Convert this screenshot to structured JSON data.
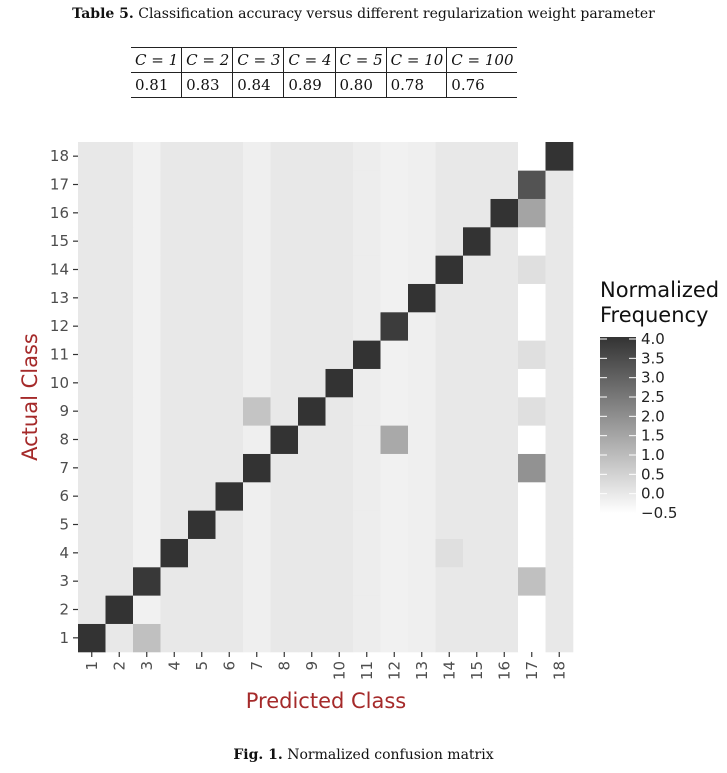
{
  "table": {
    "label": "Table 5.",
    "caption": "Classification accuracy versus different regularization weight parameter",
    "headers": [
      "C = 1",
      "C = 2",
      "C = 3",
      "C = 4",
      "C = 5",
      "C = 10",
      "C = 100"
    ],
    "values": [
      "0.81",
      "0.83",
      "0.84",
      "0.89",
      "0.80",
      "0.78",
      "0.76"
    ]
  },
  "figure": {
    "label": "Fig. 1.",
    "caption": "Normalized confusion matrix"
  },
  "colors": {
    "axis_title": "#a52a2a",
    "panel_background": "#ebebeb",
    "tile_low": "#ffffff",
    "tile_high": "#333333"
  },
  "chart_data": {
    "type": "heatmap",
    "xlabel": "Predicted Class",
    "ylabel": "Actual Class",
    "x": [
      "1",
      "2",
      "3",
      "4",
      "5",
      "6",
      "7",
      "8",
      "9",
      "10",
      "11",
      "12",
      "13",
      "14",
      "15",
      "16",
      "17",
      "18"
    ],
    "y": [
      "1",
      "2",
      "3",
      "4",
      "5",
      "6",
      "7",
      "8",
      "9",
      "10",
      "11",
      "12",
      "13",
      "14",
      "15",
      "16",
      "17",
      "18"
    ],
    "legend_title": "Normalized\nFrequency",
    "legend_ticks": [
      "4.0",
      "3.5",
      "3.0",
      "2.5",
      "2.0",
      "1.5",
      "1.0",
      "0.5",
      "0.0",
      "−0.5"
    ],
    "color_range": [
      -0.5,
      4.0
    ],
    "legend_position": "right",
    "grid": false,
    "background": 0.0,
    "column_overrides": [
      {
        "column": "7",
        "value": -0.15
      },
      {
        "column": "11",
        "value": -0.1
      },
      {
        "column": "12",
        "value": -0.2
      },
      {
        "column": "13",
        "value": -0.15
      },
      {
        "column": "17",
        "value": -0.5
      },
      {
        "column": "3",
        "value": -0.2
      }
    ],
    "cells": [
      {
        "actual": "1",
        "predicted": "1",
        "value": 4.0
      },
      {
        "actual": "1",
        "predicted": "3",
        "value": 0.9
      },
      {
        "actual": "2",
        "predicted": "2",
        "value": 4.0
      },
      {
        "actual": "3",
        "predicted": "3",
        "value": 3.9
      },
      {
        "actual": "3",
        "predicted": "17",
        "value": 0.9
      },
      {
        "actual": "4",
        "predicted": "4",
        "value": 4.0
      },
      {
        "actual": "4",
        "predicted": "14",
        "value": 0.2
      },
      {
        "actual": "5",
        "predicted": "5",
        "value": 4.0
      },
      {
        "actual": "6",
        "predicted": "6",
        "value": 4.0
      },
      {
        "actual": "7",
        "predicted": "7",
        "value": 4.0
      },
      {
        "actual": "7",
        "predicted": "17",
        "value": 1.9
      },
      {
        "actual": "8",
        "predicted": "8",
        "value": 4.0
      },
      {
        "actual": "8",
        "predicted": "12",
        "value": 1.4
      },
      {
        "actual": "9",
        "predicted": "7",
        "value": 0.8
      },
      {
        "actual": "9",
        "predicted": "9",
        "value": 4.0
      },
      {
        "actual": "9",
        "predicted": "17",
        "value": 0.2
      },
      {
        "actual": "10",
        "predicted": "10",
        "value": 4.0
      },
      {
        "actual": "11",
        "predicted": "11",
        "value": 4.0
      },
      {
        "actual": "11",
        "predicted": "17",
        "value": 0.2
      },
      {
        "actual": "12",
        "predicted": "12",
        "value": 3.8
      },
      {
        "actual": "13",
        "predicted": "13",
        "value": 4.0
      },
      {
        "actual": "14",
        "predicted": "14",
        "value": 4.0
      },
      {
        "actual": "14",
        "predicted": "17",
        "value": 0.2
      },
      {
        "actual": "15",
        "predicted": "15",
        "value": 4.0
      },
      {
        "actual": "16",
        "predicted": "16",
        "value": 4.0
      },
      {
        "actual": "16",
        "predicted": "17",
        "value": 1.5
      },
      {
        "actual": "17",
        "predicted": "17",
        "value": 3.3
      },
      {
        "actual": "18",
        "predicted": "18",
        "value": 4.0
      }
    ]
  }
}
